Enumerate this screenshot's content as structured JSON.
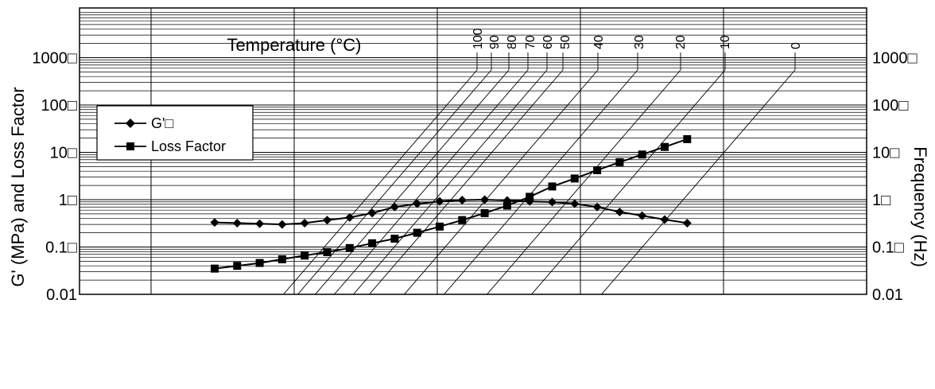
{
  "chart_data": {
    "type": "line",
    "title": "Temperature (°C)",
    "ylabel": "G' (MPa) and Loss Factor",
    "y2label": "Frequency (Hz)",
    "yscale": "log",
    "ylim": [
      0.01,
      10000
    ],
    "yticks_left": [
      "1000□",
      "100□",
      "10□",
      "1□",
      "0.1□",
      "0.01"
    ],
    "yticks_right": [
      "1000□",
      "100□",
      "10□",
      "1□",
      "0.1□",
      "0.01"
    ],
    "grid": true,
    "legend_position": "upper-left",
    "temperature_isotherms": [
      "100",
      "90",
      "80",
      "70",
      "60",
      "50",
      "40",
      "30",
      "20",
      "10",
      "0"
    ],
    "series": [
      {
        "name": "G'□",
        "marker": "diamond",
        "values": [
          0.33,
          0.32,
          0.31,
          0.3,
          0.32,
          0.37,
          0.42,
          0.52,
          0.7,
          0.82,
          0.92,
          0.98,
          1.0,
          0.96,
          0.92,
          0.89,
          0.82,
          0.7,
          0.55,
          0.46,
          0.38,
          0.32
        ]
      },
      {
        "name": "Loss Factor",
        "marker": "square",
        "values": [
          0.035,
          0.04,
          0.046,
          0.055,
          0.066,
          0.078,
          0.095,
          0.12,
          0.15,
          0.2,
          0.27,
          0.37,
          0.52,
          0.75,
          1.15,
          1.9,
          2.8,
          4.2,
          6.2,
          9.0,
          13.0,
          19.0
        ]
      }
    ]
  }
}
